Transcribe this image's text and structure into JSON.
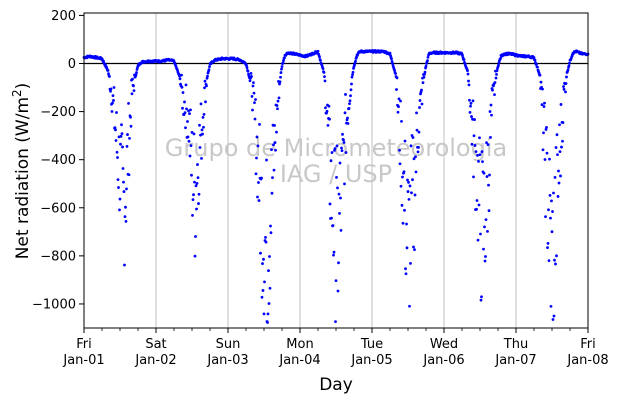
{
  "chart_data": {
    "type": "scatter",
    "xlabel": "Day",
    "ylabel": "Net radiation (W/m²)",
    "ylim": [
      -1100,
      210
    ],
    "xlim": [
      "Jan-01",
      "Jan-08"
    ],
    "yticks": [
      200,
      0,
      -200,
      -400,
      -600,
      -800,
      -1000
    ],
    "xticks": [
      {
        "day": "Fri",
        "date": "Jan-01"
      },
      {
        "day": "Sat",
        "date": "Jan-02"
      },
      {
        "day": "Sun",
        "date": "Jan-03"
      },
      {
        "day": "Mon",
        "date": "Jan-04"
      },
      {
        "day": "Tue",
        "date": "Jan-05"
      },
      {
        "day": "Wed",
        "date": "Jan-06"
      },
      {
        "day": "Thu",
        "date": "Jan-07"
      },
      {
        "day": "Fri",
        "date": "Jan-08"
      }
    ],
    "grid": "vertical",
    "reference_line": 0,
    "watermark": [
      "Grupo de Micrometeorologia",
      "IAG / USP"
    ],
    "series": [
      {
        "color": "#0000ff",
        "x": [
          "Jan-01 00:00",
          "Jan-01 02:00",
          "Jan-01 04:00",
          "Jan-01 06:00",
          "Jan-01 08:00",
          "Jan-01 09:00",
          "Jan-01 10:00",
          "Jan-01 11:00",
          "Jan-01 12:00",
          "Jan-01 13:00",
          "Jan-01 14:00",
          "Jan-01 15:00",
          "Jan-01 16:00",
          "Jan-01 17:00",
          "Jan-01 18:00",
          "Jan-01 19:00",
          "Jan-01 20:00",
          "Jan-01 22:00",
          "Jan-02 00:00",
          "Jan-02 02:00",
          "Jan-02 04:00",
          "Jan-02 06:00",
          "Jan-02 08:00",
          "Jan-02 09:00",
          "Jan-02 10:00",
          "Jan-02 11:00",
          "Jan-02 12:00",
          "Jan-02 13:00",
          "Jan-02 14:00",
          "Jan-02 15:00",
          "Jan-02 16:00",
          "Jan-02 17:00",
          "Jan-02 18:00",
          "Jan-02 19:00",
          "Jan-02 20:00",
          "Jan-02 22:00",
          "Jan-03 00:00",
          "Jan-03 02:00",
          "Jan-03 04:00",
          "Jan-03 06:00",
          "Jan-03 08:00",
          "Jan-03 09:00",
          "Jan-03 10:00",
          "Jan-03 11:00",
          "Jan-03 12:00",
          "Jan-03 13:00",
          "Jan-03 14:00",
          "Jan-03 15:00",
          "Jan-03 16:00",
          "Jan-03 17:00",
          "Jan-03 18:00",
          "Jan-03 19:00",
          "Jan-03 20:00",
          "Jan-03 22:00",
          "Jan-04 00:00",
          "Jan-04 02:00",
          "Jan-04 04:00",
          "Jan-04 06:00",
          "Jan-04 08:00",
          "Jan-04 09:00",
          "Jan-04 10:00",
          "Jan-04 11:00",
          "Jan-04 12:00",
          "Jan-04 13:00",
          "Jan-04 14:00",
          "Jan-04 15:00",
          "Jan-04 16:00",
          "Jan-04 17:00",
          "Jan-04 18:00",
          "Jan-04 19:00",
          "Jan-04 20:00",
          "Jan-04 22:00",
          "Jan-05 00:00",
          "Jan-05 02:00",
          "Jan-05 04:00",
          "Jan-05 06:00",
          "Jan-05 08:00",
          "Jan-05 09:00",
          "Jan-05 10:00",
          "Jan-05 11:00",
          "Jan-05 12:00",
          "Jan-05 13:00",
          "Jan-05 14:00",
          "Jan-05 15:00",
          "Jan-05 16:00",
          "Jan-05 17:00",
          "Jan-05 18:00",
          "Jan-05 19:00",
          "Jan-05 20:00",
          "Jan-05 22:00",
          "Jan-06 00:00",
          "Jan-06 02:00",
          "Jan-06 04:00",
          "Jan-06 06:00",
          "Jan-06 08:00",
          "Jan-06 09:00",
          "Jan-06 10:00",
          "Jan-06 11:00",
          "Jan-06 12:00",
          "Jan-06 13:00",
          "Jan-06 14:00",
          "Jan-06 15:00",
          "Jan-06 16:00",
          "Jan-06 17:00",
          "Jan-06 18:00",
          "Jan-06 19:00",
          "Jan-06 20:00",
          "Jan-06 22:00",
          "Jan-07 00:00",
          "Jan-07 02:00",
          "Jan-07 04:00",
          "Jan-07 06:00",
          "Jan-07 08:00",
          "Jan-07 09:00",
          "Jan-07 10:00",
          "Jan-07 11:00",
          "Jan-07 12:00",
          "Jan-07 13:00",
          "Jan-07 14:00",
          "Jan-07 15:00",
          "Jan-07 16:00",
          "Jan-07 17:00",
          "Jan-07 18:00",
          "Jan-07 19:00",
          "Jan-07 20:00",
          "Jan-07 22:00",
          "Jan-08 00:00"
        ],
        "y": [
          25,
          30,
          25,
          20,
          -30,
          -100,
          -200,
          -350,
          -450,
          -600,
          -500,
          -300,
          -120,
          -60,
          -10,
          5,
          8,
          10,
          10,
          10,
          15,
          10,
          -60,
          -150,
          -180,
          -250,
          -450,
          -550,
          -400,
          -300,
          -150,
          -60,
          -5,
          10,
          15,
          20,
          20,
          20,
          15,
          0,
          -100,
          -250,
          -400,
          -600,
          -700,
          -800,
          -650,
          -450,
          -250,
          -100,
          -10,
          35,
          45,
          40,
          35,
          30,
          40,
          50,
          -40,
          -200,
          -450,
          -600,
          -750,
          -700,
          -500,
          -300,
          -180,
          -80,
          -10,
          35,
          50,
          50,
          50,
          50,
          50,
          40,
          -50,
          -250,
          -400,
          -600,
          -750,
          -650,
          -550,
          -300,
          -200,
          -80,
          -10,
          40,
          45,
          45,
          45,
          45,
          45,
          40,
          -40,
          -200,
          -350,
          -450,
          -650,
          -700,
          -600,
          -400,
          -200,
          -80,
          -10,
          30,
          40,
          40,
          35,
          30,
          30,
          25,
          -50,
          -250,
          -450,
          -650,
          -850,
          -700,
          -500,
          -300,
          -120,
          -40,
          10,
          45,
          50,
          40,
          40
        ]
      }
    ]
  }
}
